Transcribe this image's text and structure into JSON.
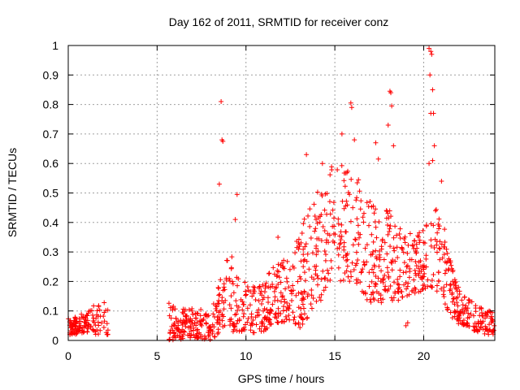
{
  "chart_data": {
    "type": "scatter",
    "title": "Day 162 of 2011, SRMTID for receiver conz",
    "xlabel": "GPS time / hours",
    "ylabel": "SRMTID / TECUs",
    "xlim": [
      0,
      24
    ],
    "ylim": [
      0,
      1
    ],
    "x_ticks": [
      0,
      5,
      10,
      15,
      20
    ],
    "x_tick_labels": [
      "0",
      "5",
      "10",
      "15",
      "20"
    ],
    "y_ticks": [
      0,
      0.1,
      0.2,
      0.3,
      0.4,
      0.5,
      0.6,
      0.7,
      0.8,
      0.9,
      1
    ],
    "y_tick_labels": [
      "0",
      "0.1",
      "0.2",
      "0.3",
      "0.4",
      "0.5",
      "0.6",
      "0.7",
      "0.8",
      "0.9",
      "1"
    ],
    "grid": true,
    "marker": "+",
    "color": "#ff0000",
    "envelope_hours": [
      0.0,
      0.5,
      1.0,
      1.5,
      2.0,
      2.2,
      5.7,
      6.0,
      7.0,
      8.0,
      8.5,
      9.0,
      9.5,
      10.0,
      10.5,
      11.0,
      11.5,
      12.0,
      12.5,
      13.0,
      13.5,
      14.0,
      14.5,
      15.0,
      15.5,
      16.0,
      16.5,
      17.0,
      17.5,
      18.0,
      18.5,
      19.0,
      19.5,
      20.0,
      20.5,
      21.0,
      21.5,
      22.0,
      22.5,
      23.0,
      23.5,
      24.0
    ],
    "envelope_low": [
      0.02,
      0.02,
      0.03,
      0.02,
      0.02,
      0.02,
      0.0,
      0.0,
      0.01,
      0.0,
      0.0,
      0.03,
      0.03,
      0.02,
      0.02,
      0.03,
      0.05,
      0.06,
      0.07,
      0.04,
      0.08,
      0.12,
      0.15,
      0.18,
      0.2,
      0.2,
      0.15,
      0.13,
      0.12,
      0.13,
      0.13,
      0.15,
      0.16,
      0.17,
      0.18,
      0.15,
      0.08,
      0.05,
      0.04,
      0.03,
      0.02,
      0.02
    ],
    "envelope_high": [
      0.08,
      0.08,
      0.1,
      0.12,
      0.15,
      0.12,
      0.17,
      0.12,
      0.12,
      0.1,
      0.2,
      0.35,
      0.25,
      0.2,
      0.18,
      0.2,
      0.25,
      0.27,
      0.28,
      0.38,
      0.45,
      0.5,
      0.55,
      0.63,
      0.6,
      0.56,
      0.55,
      0.5,
      0.42,
      0.45,
      0.4,
      0.38,
      0.36,
      0.38,
      0.45,
      0.44,
      0.28,
      0.18,
      0.14,
      0.12,
      0.1,
      0.1
    ],
    "point_count": 1400,
    "outliers": [
      {
        "x": 8.6,
        "y": 0.81
      },
      {
        "x": 8.65,
        "y": 0.68
      },
      {
        "x": 8.7,
        "y": 0.675
      },
      {
        "x": 8.5,
        "y": 0.53
      },
      {
        "x": 9.5,
        "y": 0.495
      },
      {
        "x": 9.4,
        "y": 0.41
      },
      {
        "x": 11.8,
        "y": 0.35
      },
      {
        "x": 13.4,
        "y": 0.63
      },
      {
        "x": 14.3,
        "y": 0.6
      },
      {
        "x": 15.4,
        "y": 0.7
      },
      {
        "x": 15.9,
        "y": 0.805
      },
      {
        "x": 15.95,
        "y": 0.79
      },
      {
        "x": 16.1,
        "y": 0.68
      },
      {
        "x": 17.3,
        "y": 0.67
      },
      {
        "x": 17.45,
        "y": 0.615
      },
      {
        "x": 18.1,
        "y": 0.845
      },
      {
        "x": 18.15,
        "y": 0.84
      },
      {
        "x": 18.2,
        "y": 0.795
      },
      {
        "x": 18.0,
        "y": 0.73
      },
      {
        "x": 18.3,
        "y": 0.66
      },
      {
        "x": 19.0,
        "y": 0.05
      },
      {
        "x": 19.1,
        "y": 0.06
      },
      {
        "x": 20.3,
        "y": 0.99
      },
      {
        "x": 20.4,
        "y": 0.98
      },
      {
        "x": 20.45,
        "y": 0.97
      },
      {
        "x": 20.35,
        "y": 0.9
      },
      {
        "x": 20.5,
        "y": 0.85
      },
      {
        "x": 20.55,
        "y": 0.77
      },
      {
        "x": 20.4,
        "y": 0.77
      },
      {
        "x": 20.6,
        "y": 0.66
      },
      {
        "x": 20.5,
        "y": 0.61
      },
      {
        "x": 20.3,
        "y": 0.6
      },
      {
        "x": 21.0,
        "y": 0.54
      }
    ]
  }
}
